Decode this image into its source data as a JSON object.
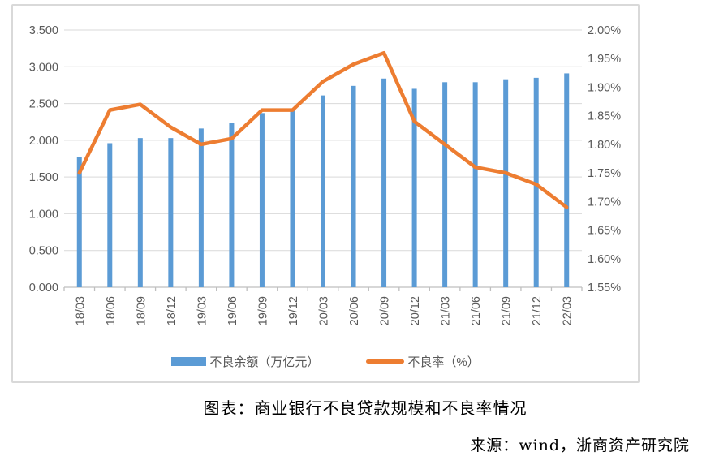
{
  "page": {
    "title": "图表：商业银行不良贷款规模和不良率情况",
    "source": "来源：wind，浙商资产研究院"
  },
  "legend": {
    "bar_label": "不良余额（万亿元）",
    "line_label": "不良率（%）"
  },
  "chart_data": {
    "type": "bar+line",
    "title": "商业银行不良贷款规模和不良率情况",
    "categories": [
      "18/03",
      "18/06",
      "18/09",
      "18/12",
      "19/03",
      "19/06",
      "19/09",
      "19/12",
      "20/03",
      "20/06",
      "20/09",
      "20/12",
      "21/03",
      "21/06",
      "21/09",
      "21/12",
      "22/03"
    ],
    "series": [
      {
        "name": "不良余额（万亿元）",
        "type": "bar",
        "axis": "left",
        "color": "#5B9BD5",
        "values": [
          1.77,
          1.96,
          2.03,
          2.03,
          2.16,
          2.24,
          2.37,
          2.41,
          2.61,
          2.74,
          2.84,
          2.7,
          2.79,
          2.79,
          2.83,
          2.85,
          2.91
        ]
      },
      {
        "name": "不良率（%）",
        "type": "line",
        "axis": "right",
        "color": "#ED7D31",
        "values": [
          1.75,
          1.86,
          1.87,
          1.83,
          1.8,
          1.81,
          1.86,
          1.86,
          1.91,
          1.94,
          1.96,
          1.84,
          1.8,
          1.76,
          1.75,
          1.73,
          1.69
        ]
      }
    ],
    "axes": {
      "left": {
        "min": 0,
        "max": 3.5,
        "step": 0.5,
        "tick_labels_top_to_bottom": [
          "3.500",
          "3.000",
          "2.500",
          "2.000",
          "1.500",
          "1.000",
          "0.500",
          "0.000"
        ]
      },
      "right": {
        "min": 1.55,
        "max": 2.0,
        "step": 0.05,
        "tick_labels_top_to_bottom": [
          "2.00%",
          "1.95%",
          "1.90%",
          "1.85%",
          "1.80%",
          "1.75%",
          "1.70%",
          "1.65%",
          "1.60%",
          "1.55%"
        ]
      }
    },
    "grid": true,
    "legend_position": "bottom",
    "style": {
      "gridline_color": "#D9D9D9",
      "axis_line_color": "#BFBFBF",
      "axis_text_color": "#595959"
    }
  }
}
